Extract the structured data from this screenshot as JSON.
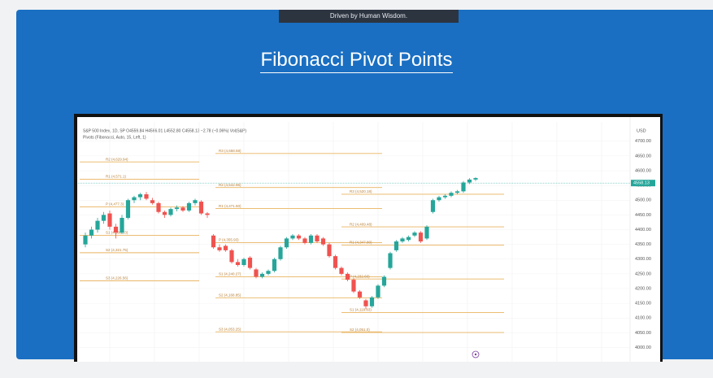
{
  "header": {
    "banner": "Driven by Human Wisdom.",
    "title": "Fibonacci Pivot Points"
  },
  "chart_data": {
    "type": "candlestick",
    "legend_lines": [
      "S&P 500 Index, 1D, SP  O4559.84 H4566.01 L4552.80 C4558.13 −2.78 (−0.06%)  Vol(S&P)",
      "Pivots (Fibonacci, Auto, 15, Left, 1)"
    ],
    "axis_unit": "USD",
    "ylim": [
      3960,
      4760
    ],
    "yticks": [
      {
        "value": 4700,
        "label": "4700.00"
      },
      {
        "value": 4650,
        "label": "4650.00"
      },
      {
        "value": 4600,
        "label": "4600.00"
      },
      {
        "value": 4550,
        "label": "4550.00"
      },
      {
        "value": 4500,
        "label": "4500.00"
      },
      {
        "value": 4450,
        "label": "4450.00"
      },
      {
        "value": 4400,
        "label": "4400.00"
      },
      {
        "value": 4350,
        "label": "4350.00"
      },
      {
        "value": 4300,
        "label": "4300.00"
      },
      {
        "value": 4250,
        "label": "4250.00"
      },
      {
        "value": 4200,
        "label": "4200.00"
      },
      {
        "value": 4150,
        "label": "4150.00"
      },
      {
        "value": 4100,
        "label": "4100.00"
      },
      {
        "value": 4050,
        "label": "4050.00"
      },
      {
        "value": 4000,
        "label": "4000.00"
      }
    ],
    "last_price": 4558.13,
    "up_color": "#26a69a",
    "down_color": "#ef5350",
    "pivot_color": "#e9b35f",
    "candles": [
      [
        4350,
        4390,
        4340,
        4380
      ],
      [
        4380,
        4410,
        4370,
        4400
      ],
      [
        4400,
        4440,
        4390,
        4430
      ],
      [
        4430,
        4460,
        4420,
        4450
      ],
      [
        4455,
        4465,
        4400,
        4410
      ],
      [
        4410,
        4420,
        4370,
        4390
      ],
      [
        4390,
        4450,
        4385,
        4440
      ],
      [
        4440,
        4505,
        4435,
        4500
      ],
      [
        4500,
        4515,
        4490,
        4510
      ],
      [
        4510,
        4525,
        4500,
        4520
      ],
      [
        4520,
        4528,
        4500,
        4505
      ],
      [
        4500,
        4508,
        4485,
        4490
      ],
      [
        4490,
        4495,
        4455,
        4460
      ],
      [
        4460,
        4465,
        4440,
        4450
      ],
      [
        4450,
        4475,
        4445,
        4470
      ],
      [
        4470,
        4482,
        4462,
        4475
      ],
      [
        4475,
        4480,
        4460,
        4465
      ],
      [
        4465,
        4495,
        4460,
        4490
      ],
      [
        4490,
        4505,
        4482,
        4500
      ],
      [
        4495,
        4500,
        4450,
        4455
      ],
      [
        4455,
        4460,
        4440,
        4450
      ],
      [
        4380,
        4385,
        4335,
        4340
      ],
      [
        4340,
        4350,
        4325,
        4330
      ],
      [
        4345,
        4350,
        4325,
        4330
      ],
      [
        4330,
        4335,
        4285,
        4290
      ],
      [
        4290,
        4300,
        4275,
        4280
      ],
      [
        4280,
        4305,
        4275,
        4300
      ],
      [
        4305,
        4310,
        4265,
        4270
      ],
      [
        4265,
        4270,
        4235,
        4240
      ],
      [
        4240,
        4255,
        4235,
        4250
      ],
      [
        4250,
        4265,
        4245,
        4260
      ],
      [
        4260,
        4305,
        4255,
        4300
      ],
      [
        4300,
        4345,
        4295,
        4340
      ],
      [
        4340,
        4375,
        4335,
        4370
      ],
      [
        4370,
        4385,
        4365,
        4380
      ],
      [
        4380,
        4385,
        4365,
        4370
      ],
      [
        4370,
        4375,
        4350,
        4355
      ],
      [
        4355,
        4385,
        4350,
        4380
      ],
      [
        4380,
        4385,
        4355,
        4360
      ],
      [
        4370,
        4375,
        4345,
        4350
      ],
      [
        4350,
        4355,
        4305,
        4310
      ],
      [
        4310,
        4315,
        4265,
        4270
      ],
      [
        4270,
        4275,
        4245,
        4250
      ],
      [
        4250,
        4255,
        4225,
        4230
      ],
      [
        4230,
        4235,
        4185,
        4190
      ],
      [
        4190,
        4195,
        4165,
        4170
      ],
      [
        4160,
        4165,
        4130,
        4140
      ],
      [
        4140,
        4175,
        4135,
        4170
      ],
      [
        4170,
        4215,
        4165,
        4210
      ],
      [
        4210,
        4245,
        4205,
        4240
      ],
      [
        4270,
        4325,
        4265,
        4320
      ],
      [
        4330,
        4365,
        4325,
        4360
      ],
      [
        4360,
        4375,
        4355,
        4370
      ],
      [
        4365,
        4380,
        4360,
        4375
      ],
      [
        4380,
        4395,
        4375,
        4390
      ],
      [
        4390,
        4395,
        4355,
        4360
      ],
      [
        4370,
        4415,
        4365,
        4410
      ],
      [
        4460,
        4505,
        4455,
        4500
      ],
      [
        4500,
        4515,
        4495,
        4510
      ],
      [
        4510,
        4520,
        4505,
        4515
      ],
      [
        4515,
        4530,
        4510,
        4525
      ],
      [
        4525,
        4535,
        4520,
        4530
      ],
      [
        4530,
        4565,
        4525,
        4560
      ],
      [
        4560,
        4575,
        4555,
        4570
      ],
      [
        4570,
        4578,
        4565,
        4575
      ]
    ],
    "pivot_periods": [
      [
        {
          "value": 4629.94,
          "label": "R2 (4,629.94)"
        },
        {
          "value": 4571.1,
          "label": "R1 (4,571.1)"
        },
        {
          "value": 4477.3,
          "label": "P (4,477.3)"
        },
        {
          "value": 4380.53,
          "label": "S1 (4,380.53)"
        },
        {
          "value": 4321.75,
          "label": "S2 (4,321.75)"
        },
        {
          "value": 4226.56,
          "label": "S3 (4,226.56)"
        }
      ],
      [
        {
          "value": 4658.58,
          "label": "R3 (4,658.58)"
        },
        {
          "value": 4542.96,
          "label": "R2 (4,542.96)"
        },
        {
          "value": 4471.5,
          "label": "R1 (4,471.50)"
        },
        {
          "value": 4355.93,
          "label": "P (4,355.93)"
        },
        {
          "value": 4240.27,
          "label": "S1 (4,240.27)"
        },
        {
          "value": 4168.85,
          "label": "S2 (4,168.85)"
        },
        {
          "value": 4053.25,
          "label": "S3 (4,053.25)"
        }
      ],
      [
        {
          "value": 4520.18,
          "label": "R3 (4,520.18)"
        },
        {
          "value": 4409.48,
          "label": "R2 (4,409.48)"
        },
        {
          "value": 4347.8,
          "label": "R1 (4,347.80)"
        },
        {
          "value": 4232.6,
          "label": "P (4,232.60)"
        },
        {
          "value": 4118.83,
          "label": "S1 (4,118.83)"
        },
        {
          "value": 4051.0,
          "label": "S2 (4,051.0)"
        }
      ]
    ]
  }
}
